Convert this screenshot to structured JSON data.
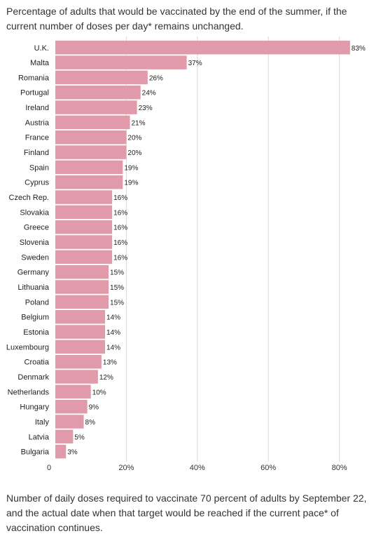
{
  "title": "Percentage of adults that would be vaccinated by the end of the summer, if the current number of doses per day* remains unchanged.",
  "footer": "Number of daily doses required to vaccinate 70 percent of adults by September 22, and the actual date when that target would be reached if the current pace* of vaccination continues.",
  "colors": {
    "bar": "#e09aa9",
    "grid": "#d9d9d9"
  },
  "chart_data": {
    "type": "bar",
    "orientation": "horizontal",
    "categories": [
      "U.K.",
      "Malta",
      "Romania",
      "Portugal",
      "Ireland",
      "Austria",
      "France",
      "Finland",
      "Spain",
      "Cyprus",
      "Czech Rep.",
      "Slovakia",
      "Greece",
      "Slovenia",
      "Sweden",
      "Germany",
      "Lithuania",
      "Poland",
      "Belgium",
      "Estonia",
      "Luxembourg",
      "Croatia",
      "Denmark",
      "Netherlands",
      "Hungary",
      "Italy",
      "Latvia",
      "Bulgaria"
    ],
    "values": [
      83,
      37,
      26,
      24,
      23,
      21,
      20,
      20,
      19,
      19,
      16,
      16,
      16,
      16,
      16,
      15,
      15,
      15,
      14,
      14,
      14,
      13,
      12,
      10,
      9,
      8,
      5,
      3
    ],
    "value_labels": [
      "83%",
      "37%",
      "26%",
      "24%",
      "23%",
      "21%",
      "20%",
      "20%",
      "19%",
      "19%",
      "16%",
      "16%",
      "16%",
      "16%",
      "16%",
      "15%",
      "15%",
      "15%",
      "14%",
      "14%",
      "14%",
      "13%",
      "12%",
      "10%",
      "9%",
      "8%",
      "5%",
      "3%"
    ],
    "xlim": [
      0,
      85
    ],
    "xticks": [
      0,
      20,
      40,
      60,
      80
    ],
    "xtick_labels": [
      "0",
      "20%",
      "40%",
      "60%",
      "80%"
    ],
    "grid": true
  }
}
